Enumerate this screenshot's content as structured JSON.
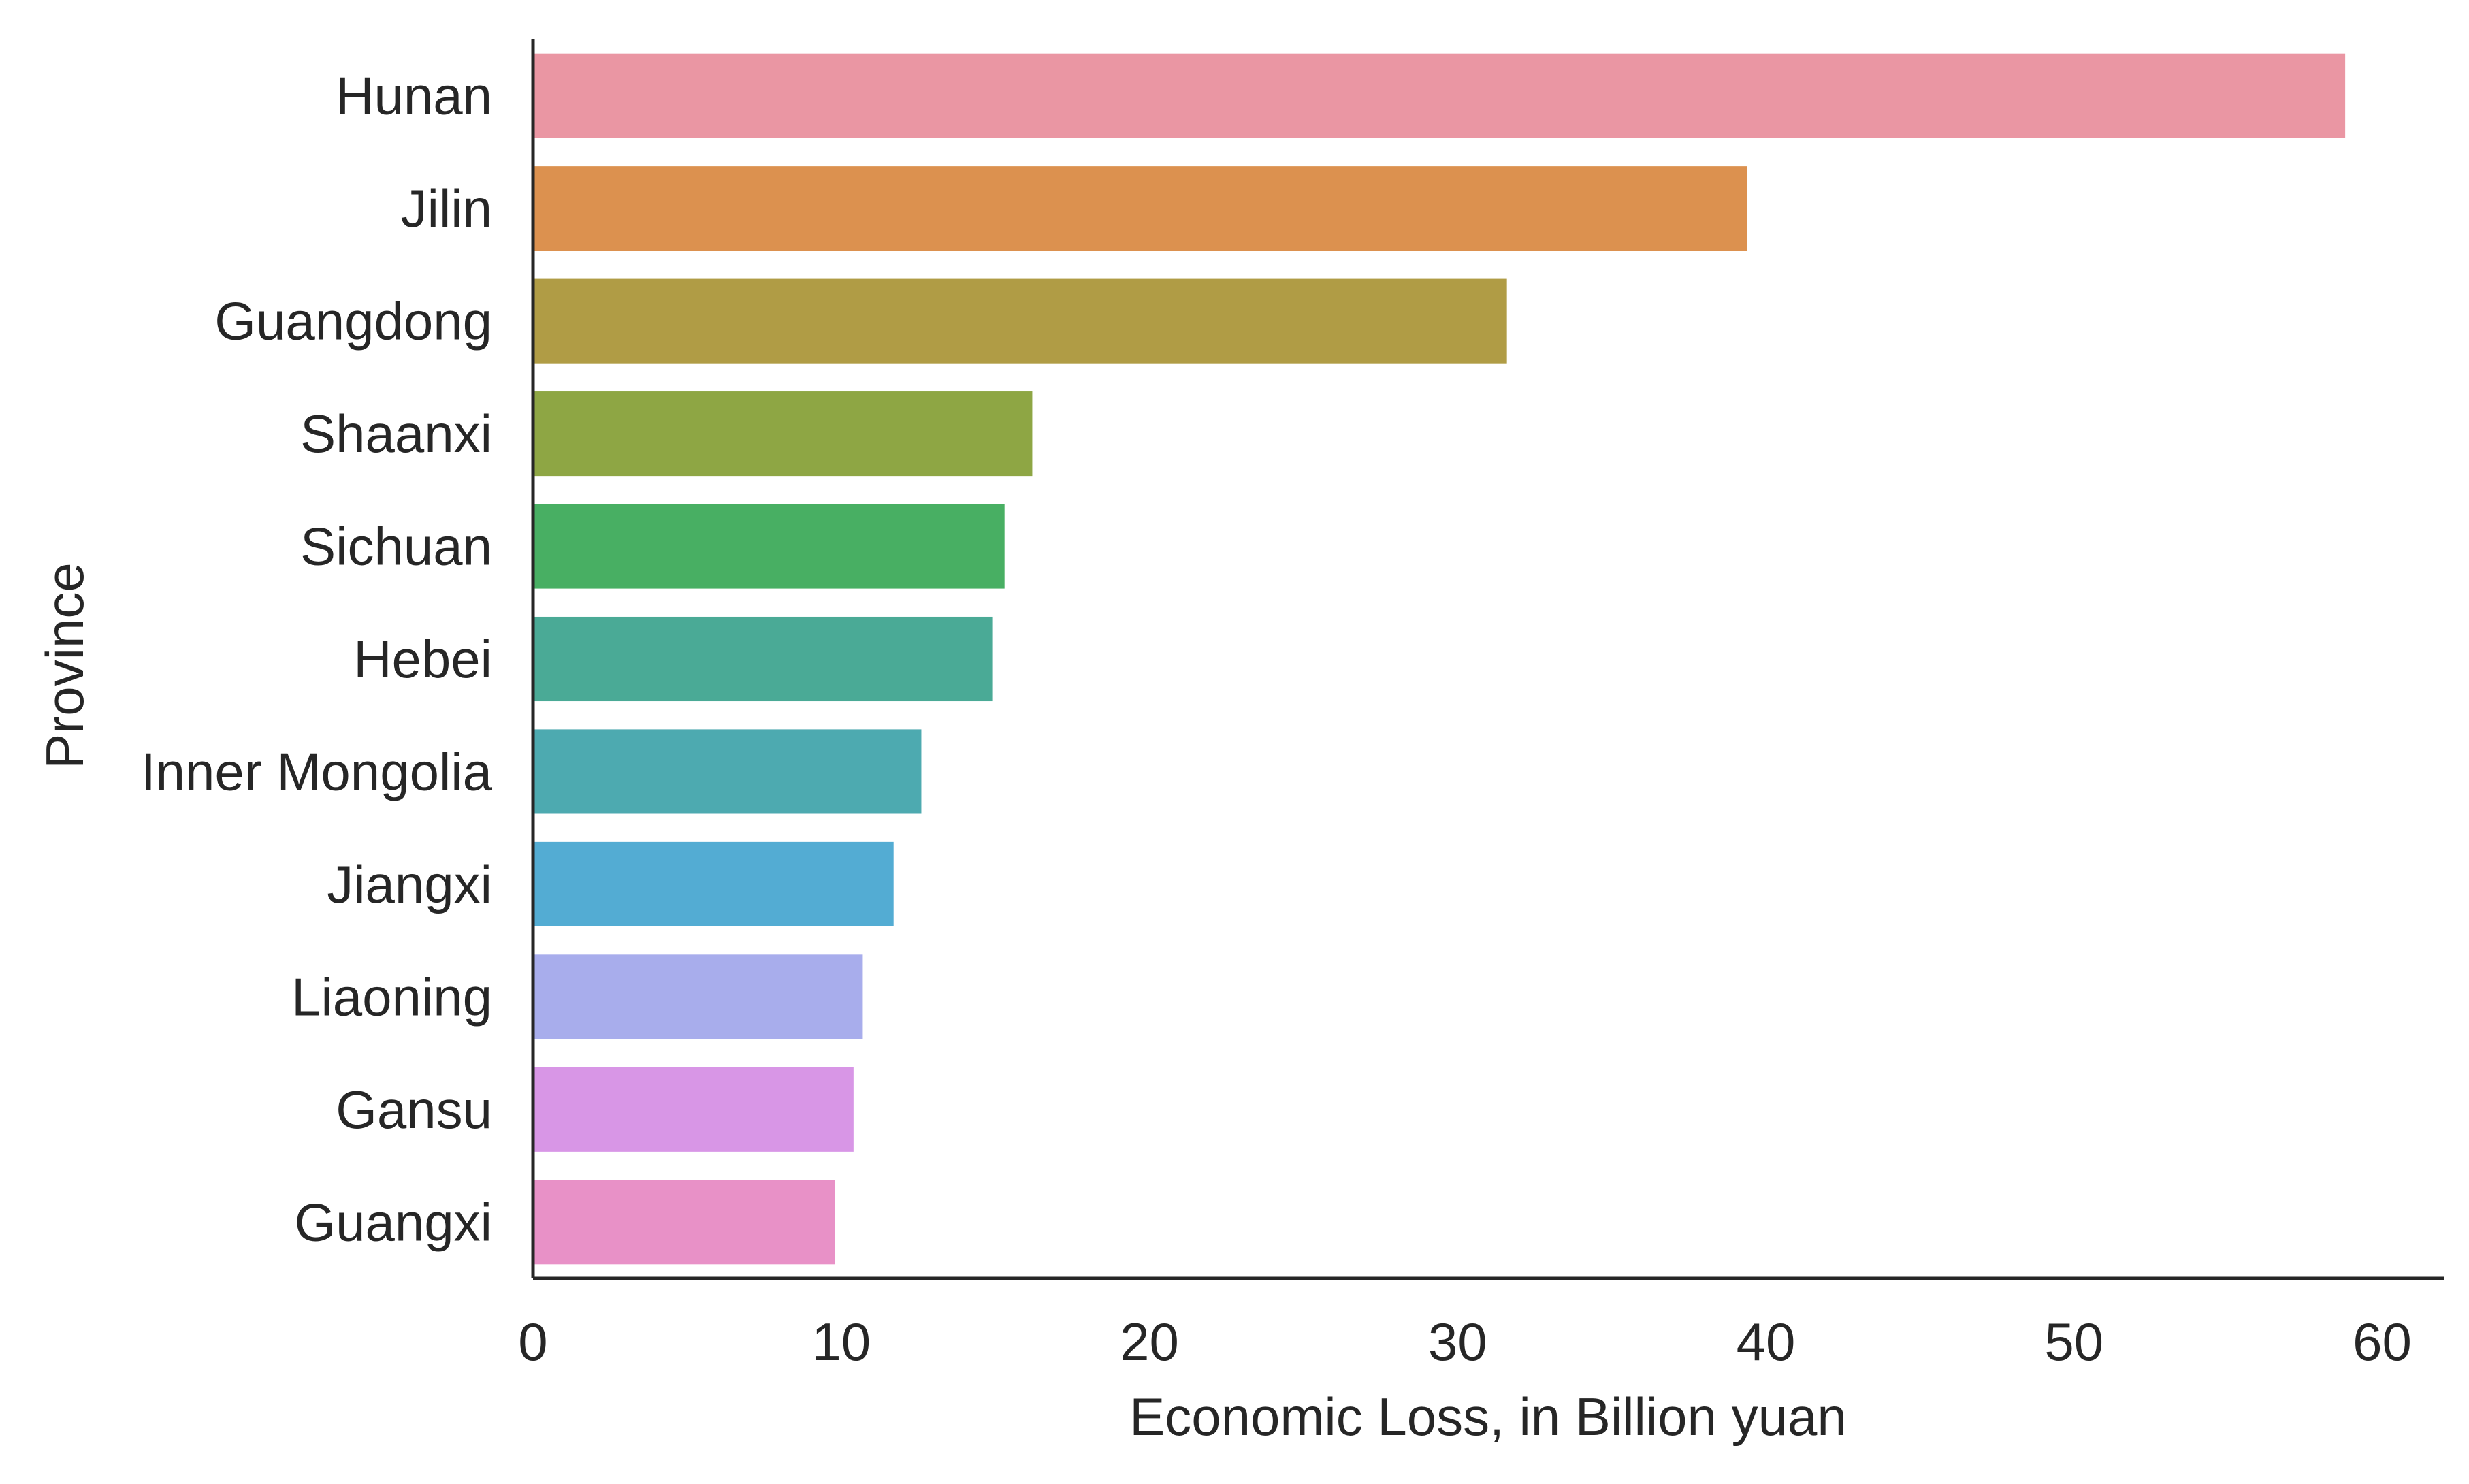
{
  "chart_data": {
    "type": "bar",
    "orientation": "horizontal",
    "title": "",
    "xlabel": "Economic Loss, in Billion yuan",
    "ylabel": "Province",
    "xlim": [
      0,
      62
    ],
    "xticks": [
      0,
      10,
      20,
      30,
      40,
      50,
      60
    ],
    "xtick_labels": [
      "0",
      "10",
      "20",
      "30",
      "40",
      "50",
      "60"
    ],
    "grid": false,
    "categories": [
      "Hunan",
      "Jilin",
      "Guangdong",
      "Shaanxi",
      "Sichuan",
      "Hebei",
      "Inner Mongolia",
      "Jiangxi",
      "Liaoning",
      "Gansu",
      "Guangxi"
    ],
    "values": [
      58.8,
      39.4,
      31.6,
      16.2,
      15.3,
      14.9,
      12.6,
      11.7,
      10.7,
      10.4,
      9.8
    ],
    "colors": [
      "#ea96a3",
      "#dc914f",
      "#b09c45",
      "#8ea644",
      "#48af63",
      "#4aaa96",
      "#4daab0",
      "#53acd3",
      "#a8adec",
      "#d896e6",
      "#e891c7"
    ]
  }
}
